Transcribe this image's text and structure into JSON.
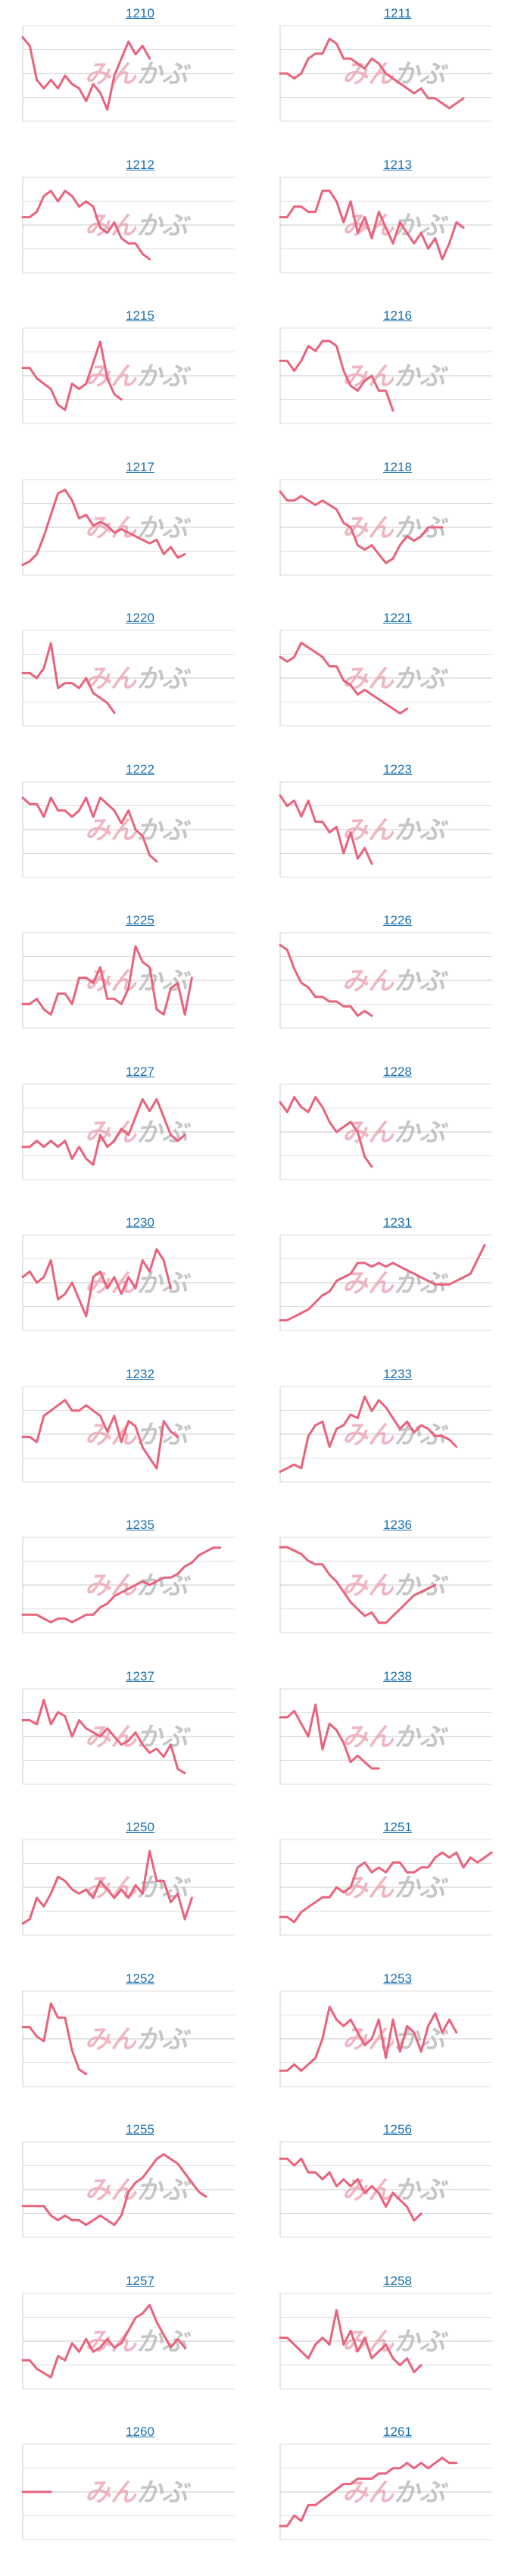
{
  "watermark_text": "みんかぶ",
  "colors": {
    "line": "#e8637c",
    "title": "#1a6fb0",
    "grid": "#dddddd",
    "axis": "#cccccc",
    "watermark_a": "#e9a0ae",
    "watermark_b": "#b3b3b3"
  },
  "chart_data": [
    {
      "type": "line",
      "title": "1210",
      "values": [
        62,
        60,
        52,
        50,
        52,
        50,
        53,
        51,
        50,
        47,
        51,
        49,
        45,
        53,
        57,
        61,
        58,
        60,
        57
      ]
    },
    {
      "type": "line",
      "title": "1211",
      "values": [
        52,
        52,
        51,
        52,
        55,
        56,
        56,
        59,
        58,
        55,
        55,
        54,
        53,
        55,
        54,
        52,
        51,
        50,
        49,
        48,
        49,
        47,
        47,
        46,
        45,
        46,
        47
      ]
    },
    {
      "type": "line",
      "title": "1212",
      "values": [
        50,
        50,
        51,
        54,
        55,
        53,
        55,
        54,
        52,
        53,
        52,
        48,
        47,
        49,
        46,
        45,
        45,
        43,
        42
      ]
    },
    {
      "type": "line",
      "title": "1213",
      "values": [
        50,
        50,
        52,
        52,
        51,
        51,
        55,
        55,
        53,
        49,
        53,
        47,
        50,
        46,
        51,
        48,
        45,
        49,
        47,
        45,
        47,
        44,
        46,
        42,
        45,
        49,
        48
      ]
    },
    {
      "type": "line",
      "title": "1215",
      "values": [
        50,
        50,
        48,
        47,
        46,
        43,
        42,
        47,
        46,
        47,
        51,
        55,
        48,
        45,
        44
      ]
    },
    {
      "type": "line",
      "title": "1216",
      "values": [
        56,
        56,
        54,
        56,
        59,
        58,
        60,
        60,
        59,
        54,
        51,
        50,
        52,
        53,
        50,
        50,
        46
      ]
    },
    {
      "type": "line",
      "title": "1217",
      "values": [
        40,
        41,
        43,
        48,
        54,
        60,
        61,
        58,
        53,
        54,
        51,
        52,
        51,
        49,
        50,
        49,
        48,
        47,
        46,
        47,
        43,
        45,
        42,
        43
      ]
    },
    {
      "type": "line",
      "title": "1218",
      "values": [
        63,
        61,
        61,
        62,
        61,
        60,
        61,
        60,
        59,
        56,
        55,
        51,
        50,
        51,
        49,
        47,
        48,
        51,
        53,
        52,
        53,
        55,
        55,
        55
      ]
    },
    {
      "type": "line",
      "title": "1220",
      "values": [
        55,
        55,
        54,
        56,
        61,
        52,
        53,
        53,
        52,
        54,
        51,
        50,
        49,
        47
      ]
    },
    {
      "type": "line",
      "title": "1221",
      "values": [
        51,
        50,
        51,
        54,
        53,
        52,
        51,
        49,
        49,
        46,
        45,
        43,
        44,
        43,
        42,
        41,
        40,
        39,
        40
      ]
    },
    {
      "type": "line",
      "title": "1222",
      "values": [
        53,
        52,
        52,
        50,
        53,
        51,
        51,
        50,
        51,
        53,
        50,
        53,
        52,
        51,
        49,
        51,
        48,
        47,
        44,
        43
      ]
    },
    {
      "type": "line",
      "title": "1223",
      "values": [
        57,
        55,
        56,
        53,
        56,
        52,
        52,
        50,
        51,
        46,
        50,
        45,
        47,
        44
      ]
    },
    {
      "type": "line",
      "title": "1225",
      "values": [
        40,
        40,
        41,
        39,
        38,
        42,
        42,
        40,
        45,
        45,
        44,
        47,
        41,
        41,
        40,
        43,
        51,
        48,
        47,
        39,
        38,
        43,
        44,
        38,
        45
      ]
    },
    {
      "type": "line",
      "title": "1226",
      "values": [
        56,
        55,
        51,
        48,
        47,
        45,
        45,
        44,
        44,
        43,
        43,
        41,
        42,
        41
      ]
    },
    {
      "type": "line",
      "title": "1227",
      "values": [
        43,
        43,
        44,
        43,
        44,
        43,
        44,
        41,
        43,
        41,
        40,
        45,
        43,
        44,
        46,
        45,
        48,
        51,
        49,
        51,
        48,
        45,
        44,
        45
      ]
    },
    {
      "type": "line",
      "title": "1228",
      "values": [
        58,
        56,
        59,
        57,
        56,
        59,
        57,
        54,
        52,
        53,
        54,
        52,
        47,
        45
      ]
    },
    {
      "type": "line",
      "title": "1230",
      "values": [
        50,
        51,
        49,
        50,
        53,
        46,
        47,
        49,
        46,
        43,
        50,
        51,
        48,
        50,
        47,
        50,
        48,
        53,
        51,
        55,
        53,
        48
      ]
    },
    {
      "type": "line",
      "title": "1231",
      "values": [
        37,
        37,
        38,
        39,
        40,
        42,
        44,
        45,
        48,
        49,
        50,
        53,
        53,
        52,
        53,
        52,
        53,
        52,
        51,
        50,
        49,
        48,
        47,
        47,
        47,
        48,
        49,
        50,
        54,
        58
      ]
    },
    {
      "type": "line",
      "title": "1232",
      "values": [
        50,
        50,
        49,
        54,
        55,
        56,
        57,
        55,
        55,
        56,
        55,
        54,
        51,
        54,
        49,
        53,
        52,
        48,
        46,
        44,
        53,
        51,
        50
      ]
    },
    {
      "type": "line",
      "title": "1233",
      "values": [
        38,
        39,
        40,
        39,
        48,
        51,
        52,
        45,
        50,
        51,
        54,
        53,
        59,
        55,
        58,
        56,
        53,
        50,
        52,
        49,
        51,
        50,
        48,
        48,
        47,
        45
      ]
    },
    {
      "type": "line",
      "title": "1235",
      "values": [
        44,
        44,
        44,
        43,
        42,
        43,
        43,
        42,
        43,
        44,
        44,
        46,
        47,
        49,
        50,
        51,
        52,
        53,
        52,
        53,
        54,
        54,
        55,
        57,
        58,
        60,
        61,
        62,
        62
      ]
    },
    {
      "type": "line",
      "title": "1236",
      "values": [
        66,
        66,
        65,
        64,
        62,
        61,
        61,
        58,
        56,
        53,
        50,
        48,
        46,
        47,
        44,
        44,
        46,
        48,
        50,
        52,
        53,
        54,
        55
      ]
    },
    {
      "type": "line",
      "title": "1237",
      "values": [
        54,
        54,
        53,
        59,
        53,
        56,
        55,
        50,
        54,
        52,
        51,
        50,
        52,
        50,
        48,
        49,
        51,
        48,
        46,
        47,
        45,
        48,
        42,
        41
      ]
    },
    {
      "type": "line",
      "title": "1238",
      "values": [
        50,
        50,
        51,
        49,
        47,
        52,
        45,
        49,
        48,
        46,
        43,
        44,
        43,
        42,
        42
      ]
    },
    {
      "type": "line",
      "title": "1250",
      "values": [
        35,
        36,
        41,
        39,
        42,
        46,
        45,
        43,
        42,
        43,
        41,
        45,
        43,
        41,
        43,
        41,
        44,
        42,
        52,
        45,
        45,
        40,
        42,
        36,
        41
      ]
    },
    {
      "type": "line",
      "title": "1251",
      "values": [
        40,
        40,
        39,
        41,
        42,
        43,
        44,
        44,
        46,
        45,
        46,
        50,
        51,
        49,
        50,
        49,
        51,
        51,
        49,
        49,
        50,
        50,
        52,
        53,
        52,
        53,
        50,
        52,
        51,
        52,
        53
      ]
    },
    {
      "type": "line",
      "title": "1252",
      "values": [
        51,
        51,
        49,
        48,
        56,
        53,
        53,
        46,
        42,
        41
      ]
    },
    {
      "type": "line",
      "title": "1253",
      "values": [
        42,
        42,
        43,
        42,
        43,
        44,
        47,
        52,
        50,
        49,
        50,
        48,
        46,
        47,
        50,
        44,
        50,
        45,
        49,
        48,
        45,
        49,
        51,
        48,
        50,
        48
      ]
    },
    {
      "type": "line",
      "title": "1255",
      "values": [
        40,
        40,
        40,
        40,
        38,
        37,
        38,
        37,
        37,
        36,
        37,
        38,
        37,
        36,
        38,
        43,
        45,
        46,
        48,
        50,
        51,
        50,
        49,
        47,
        45,
        43,
        42
      ]
    },
    {
      "type": "line",
      "title": "1256",
      "values": [
        53,
        53,
        52,
        53,
        51,
        51,
        50,
        51,
        49,
        50,
        49,
        50,
        48,
        49,
        48,
        46,
        48,
        47,
        46,
        44,
        45
      ]
    },
    {
      "type": "line",
      "title": "1257",
      "values": [
        39,
        39,
        37,
        36,
        35,
        40,
        39,
        43,
        41,
        44,
        41,
        42,
        44,
        42,
        43,
        46,
        49,
        50,
        52,
        48,
        45,
        42,
        44,
        42
      ]
    },
    {
      "type": "line",
      "title": "1258",
      "values": [
        50,
        50,
        49,
        48,
        47,
        49,
        50,
        49,
        54,
        49,
        51,
        48,
        50,
        47,
        48,
        49,
        47,
        46,
        47,
        45,
        46
      ]
    },
    {
      "type": "line",
      "title": "1260",
      "values": [
        50,
        50,
        50,
        50,
        50
      ]
    },
    {
      "type": "line",
      "title": "1261",
      "values": [
        37,
        37,
        39,
        38,
        41,
        41,
        42,
        43,
        44,
        45,
        45,
        46,
        46,
        46,
        47,
        47,
        48,
        48,
        49,
        48,
        49,
        48,
        49,
        50,
        49,
        49
      ]
    }
  ]
}
